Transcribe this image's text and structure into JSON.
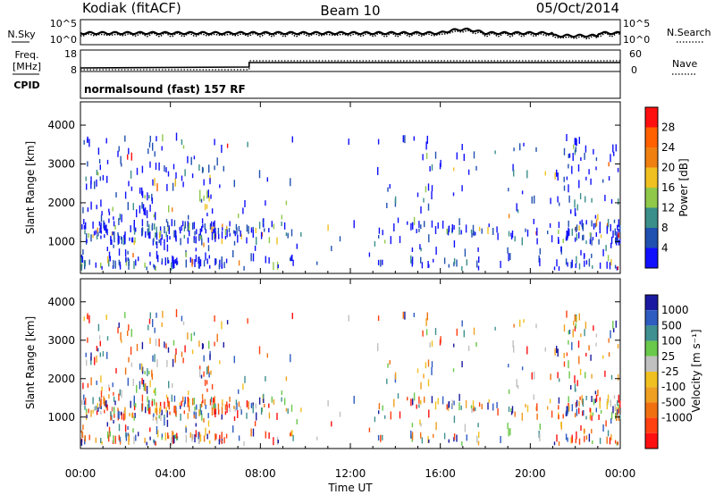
{
  "header": {
    "station": "Kodiak (fitACF)",
    "beam": "Beam 10",
    "date": "05/Oct/2014"
  },
  "top_panels": {
    "nsky_label": "N.Sky",
    "nsky_tick_top": "10^5",
    "nsky_tick_bottom": "10^0",
    "nsearch_label": "N.Search",
    "freq_label_line1": "Freq.",
    "freq_label_line2": "[MHz]",
    "freq_tick_top": "18",
    "freq_tick_bottom": "8",
    "nave_tick_top": "60",
    "nave_tick_bottom": "0",
    "nave_label": "Nave",
    "cpid_label": "CPID",
    "cpid_text": "normalsound (fast) 157 RF"
  },
  "chart_data": [
    {
      "type": "heatmap",
      "name": "power",
      "ylabel": "Slant Range [km]",
      "ylim": [
        180,
        4600
      ],
      "yticks": [
        1000,
        2000,
        3000,
        4000
      ],
      "xlim": [
        0,
        24
      ],
      "colorbar": {
        "label": "Power [dB]",
        "ticks": [
          "4",
          "8",
          "12",
          "16",
          "20",
          "24",
          "28"
        ],
        "colors": [
          "#1010ff",
          "#2050b0",
          "#3a8f8a",
          "#90c84a",
          "#f0c020",
          "#f08010",
          "#ff6000",
          "#ff1010"
        ]
      }
    },
    {
      "type": "heatmap",
      "name": "velocity",
      "ylabel": "Slant Range [km]",
      "ylim": [
        180,
        4600
      ],
      "yticks": [
        1000,
        2000,
        3000,
        4000
      ],
      "xlim": [
        0,
        24
      ],
      "colorbar": {
        "label": "Velocity [m s⁻¹]",
        "ticks": [
          "1000",
          "500",
          "100",
          "25",
          "-25",
          "-100",
          "-500",
          "-1000"
        ],
        "colors": [
          "#1a1aa0",
          "#2e5cc0",
          "#3f9090",
          "#6ac84a",
          "#c0c0c0",
          "#f0c020",
          "#f0a020",
          "#f07010",
          "#ff4010",
          "#ff1010"
        ]
      }
    }
  ],
  "x_axis": {
    "ticks": [
      "00:00",
      "04:00",
      "08:00",
      "12:00",
      "16:00",
      "20:00",
      "00:00"
    ],
    "label": "Time UT"
  }
}
